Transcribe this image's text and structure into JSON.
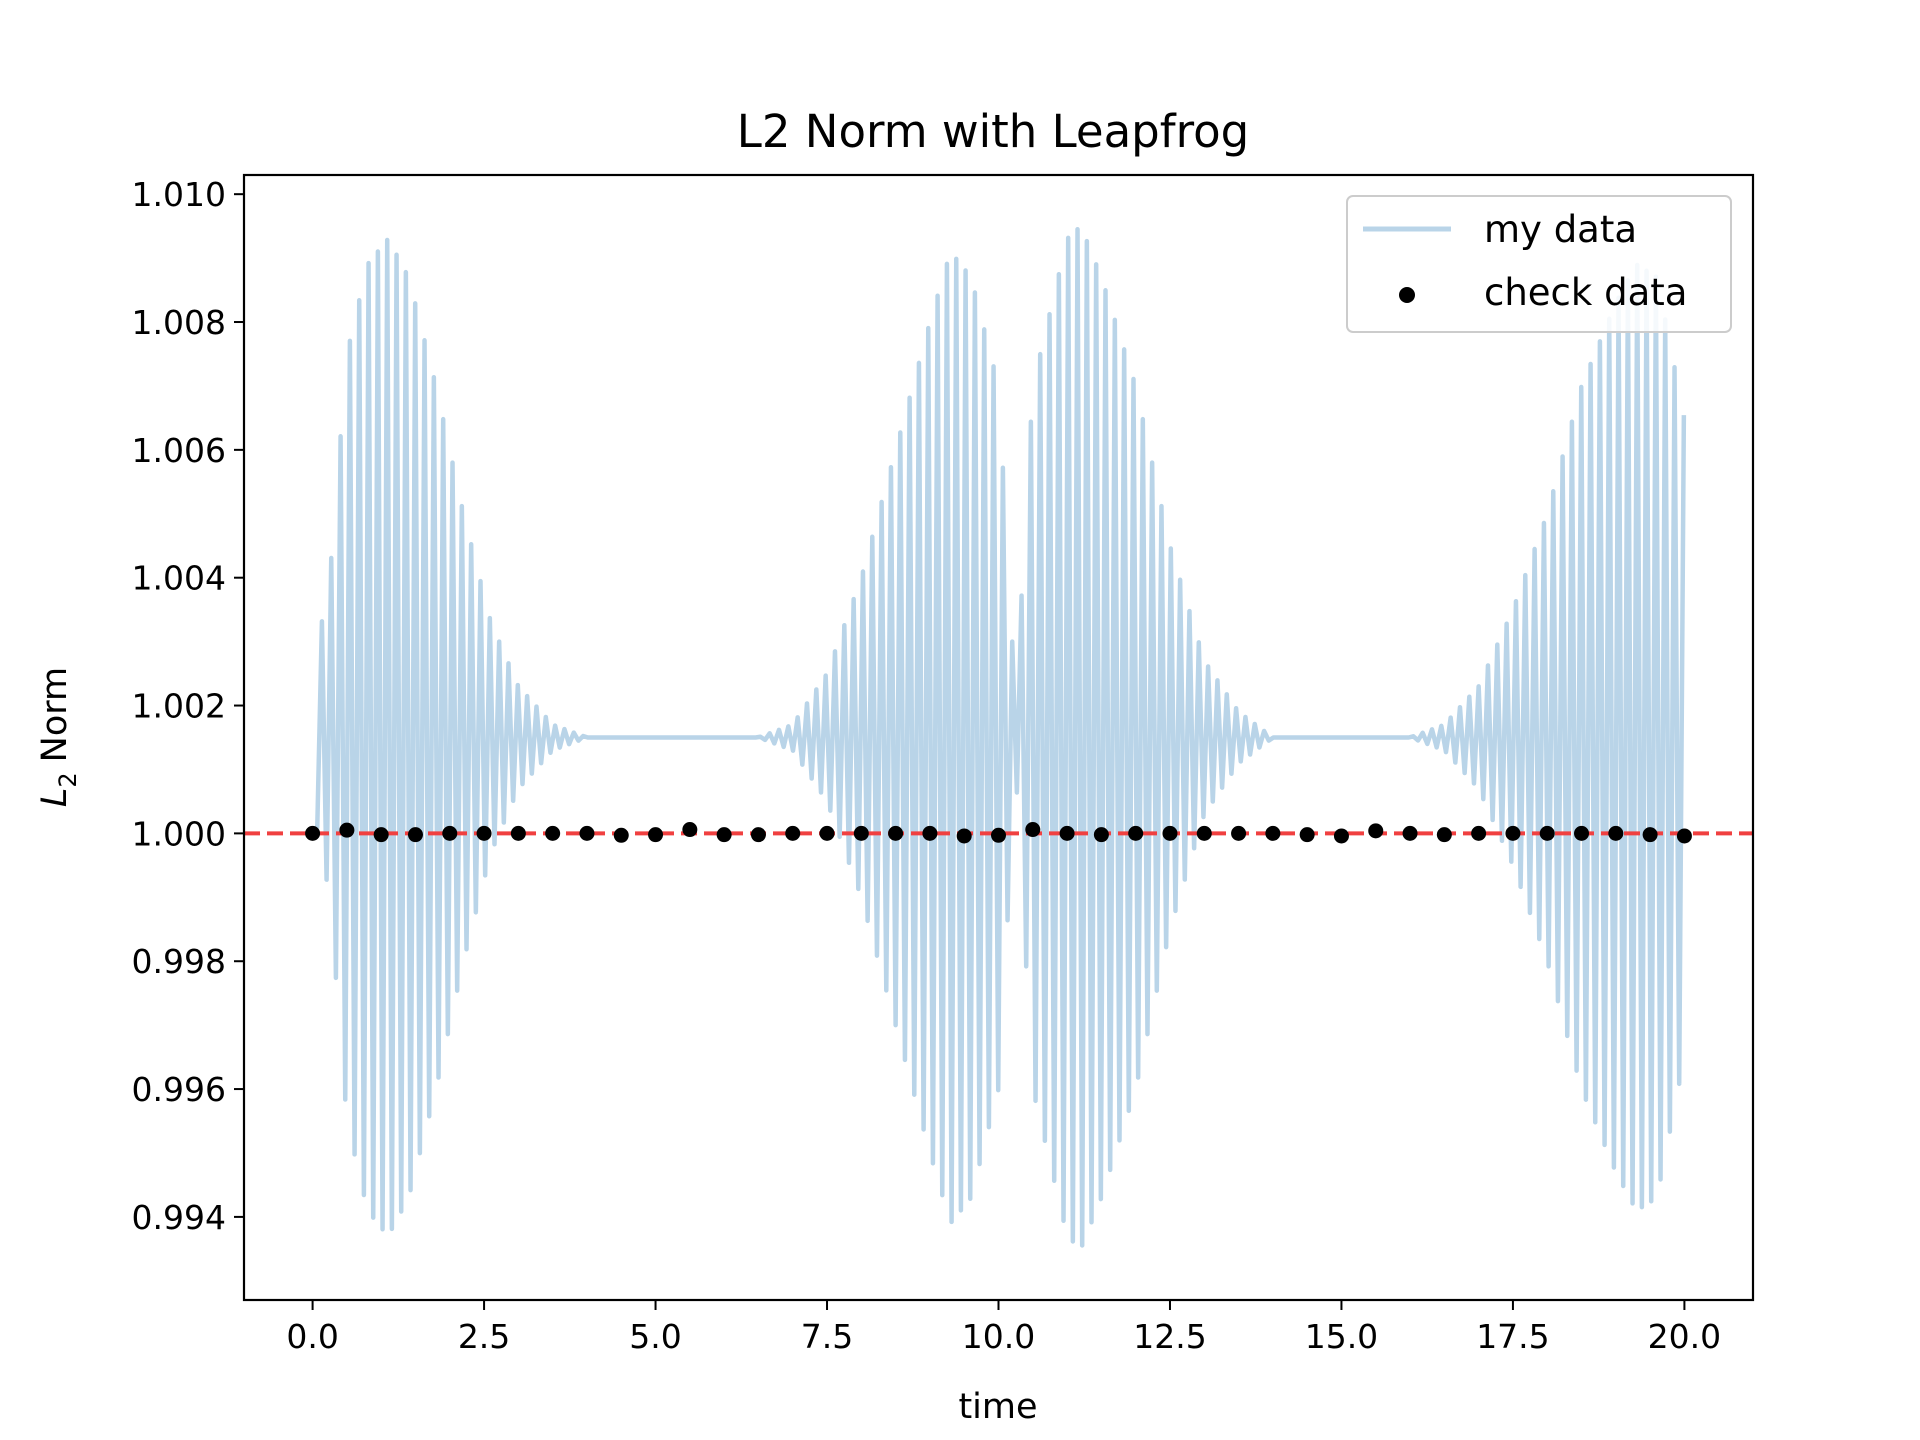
{
  "chart_data": {
    "type": "line",
    "title": "L2 Norm with Leapfrog",
    "xlabel": "time",
    "ylabel_main": "L",
    "ylabel_sub": "2",
    "ylabel_rest": "Norm",
    "xlim": [
      -1.0,
      21.0
    ],
    "ylim": [
      0.9927,
      1.0103
    ],
    "xticks": [
      0.0,
      2.5,
      5.0,
      7.5,
      10.0,
      12.5,
      15.0,
      17.5,
      20.0
    ],
    "xtick_labels": [
      "0.0",
      "2.5",
      "5.0",
      "7.5",
      "10.0",
      "12.5",
      "15.0",
      "17.5",
      "20.0"
    ],
    "yticks": [
      0.994,
      0.996,
      0.998,
      1.0,
      1.002,
      1.004,
      1.006,
      1.008,
      1.01
    ],
    "ytick_labels": [
      "0.994",
      "0.996",
      "0.998",
      "1.000",
      "1.002",
      "1.004",
      "1.006",
      "1.008",
      "1.010"
    ],
    "grid": false,
    "legend_position": "top-right",
    "series": [
      {
        "name": "my data",
        "kind": "line",
        "color": "#b9d4e8",
        "baseline": 1.0015,
        "envelope": [
          [
            0.0,
            0.001
          ],
          [
            0.25,
            0.0025
          ],
          [
            0.5,
            0.006
          ],
          [
            0.8,
            0.0074
          ],
          [
            1.1,
            0.0078
          ],
          [
            1.4,
            0.0072
          ],
          [
            1.8,
            0.0055
          ],
          [
            2.2,
            0.0035
          ],
          [
            2.6,
            0.0018
          ],
          [
            3.0,
            0.0008
          ],
          [
            3.5,
            0.0002
          ],
          [
            4.0,
            0.0
          ],
          [
            6.5,
            0.0
          ],
          [
            7.0,
            0.0002
          ],
          [
            7.5,
            0.001
          ],
          [
            8.0,
            0.0025
          ],
          [
            8.5,
            0.0045
          ],
          [
            9.0,
            0.0065
          ],
          [
            9.3,
            0.0076
          ],
          [
            9.6,
            0.0072
          ],
          [
            10.0,
            0.0055
          ],
          [
            10.25,
            0.0005
          ],
          [
            10.5,
            0.0055
          ],
          [
            11.0,
            0.0078
          ],
          [
            11.2,
            0.008
          ],
          [
            11.5,
            0.0072
          ],
          [
            12.0,
            0.0055
          ],
          [
            12.5,
            0.003
          ],
          [
            13.0,
            0.0012
          ],
          [
            13.5,
            0.0004
          ],
          [
            14.0,
            0.0
          ],
          [
            16.0,
            0.0
          ],
          [
            16.5,
            0.0002
          ],
          [
            17.0,
            0.0008
          ],
          [
            17.5,
            0.002
          ],
          [
            18.0,
            0.0035
          ],
          [
            18.5,
            0.0055
          ],
          [
            19.0,
            0.0068
          ],
          [
            19.3,
            0.0074
          ],
          [
            19.6,
            0.0072
          ],
          [
            20.0,
            0.005
          ]
        ]
      },
      {
        "name": "check data",
        "kind": "scatter",
        "color": "#000000",
        "x": [
          0.0,
          0.5,
          1.0,
          1.5,
          2.0,
          2.5,
          3.0,
          3.5,
          4.0,
          4.5,
          5.0,
          5.5,
          6.0,
          6.5,
          7.0,
          7.5,
          8.0,
          8.5,
          9.0,
          9.5,
          10.0,
          10.5,
          11.0,
          11.5,
          12.0,
          12.5,
          13.0,
          13.5,
          14.0,
          14.5,
          15.0,
          15.5,
          16.0,
          16.5,
          17.0,
          17.5,
          18.0,
          18.5,
          19.0,
          19.5,
          20.0
        ],
        "y": [
          1.0,
          1.00005,
          0.99998,
          0.99998,
          1.0,
          1.0,
          1.0,
          1.0,
          1.0,
          0.99997,
          0.99998,
          1.00006,
          0.99998,
          0.99998,
          1.0,
          1.0,
          1.0,
          1.0,
          1.0,
          0.99996,
          0.99997,
          1.00006,
          1.0,
          0.99998,
          1.0,
          1.0,
          1.0,
          1.0,
          1.0,
          0.99998,
          0.99996,
          1.00004,
          1.0,
          0.99998,
          1.0,
          1.0,
          1.0,
          1.0,
          1.0,
          0.99998,
          0.99996
        ]
      }
    ],
    "reference_line": {
      "y": 1.0,
      "color": "#f04040",
      "style": "dashed"
    }
  }
}
